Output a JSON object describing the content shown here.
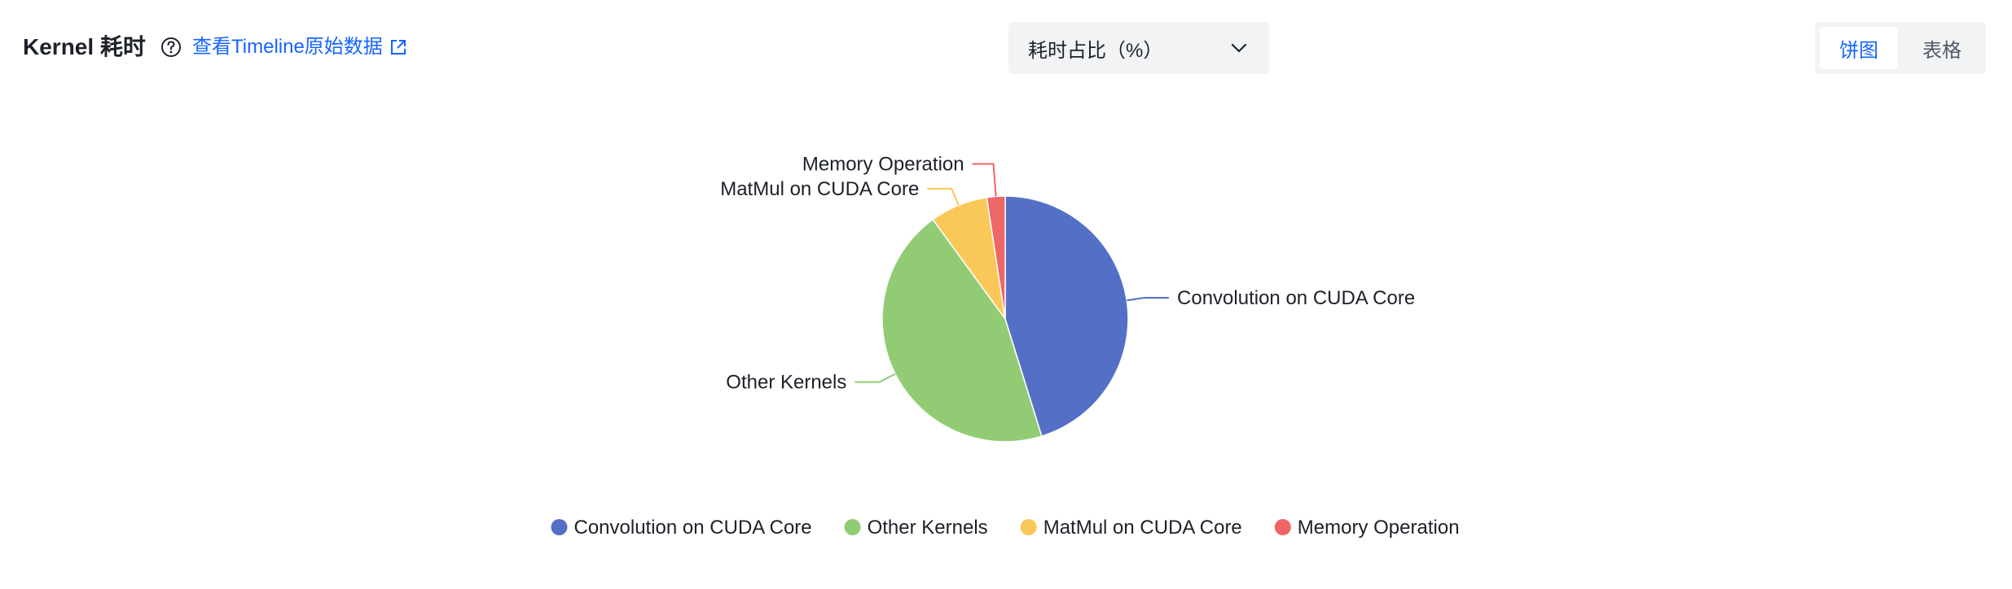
{
  "header": {
    "title": "Kernel 耗时",
    "timeline_link": "查看Timeline原始数据",
    "metric_select": "耗时占比（%）",
    "view_toggle": [
      "饼图",
      "表格"
    ],
    "active_view": "饼图"
  },
  "icons": {
    "help": "question-circle-icon",
    "external_link": "external-link-icon",
    "dropdown": "chevron-down-icon"
  },
  "colors": {
    "accent": "#1664ff"
  },
  "chart_data": {
    "type": "pie",
    "title": "",
    "legend_position": "bottom",
    "slices": [
      {
        "label": "Convolution on CUDA Core",
        "value": 45.2,
        "color": "#5470c6"
      },
      {
        "label": "Other Kernels",
        "value": 44.8,
        "color": "#91cc75"
      },
      {
        "label": "MatMul on CUDA Core",
        "value": 7.6,
        "color": "#fac858"
      },
      {
        "label": "Memory Operation",
        "value": 2.4,
        "color": "#ee6666"
      }
    ]
  }
}
